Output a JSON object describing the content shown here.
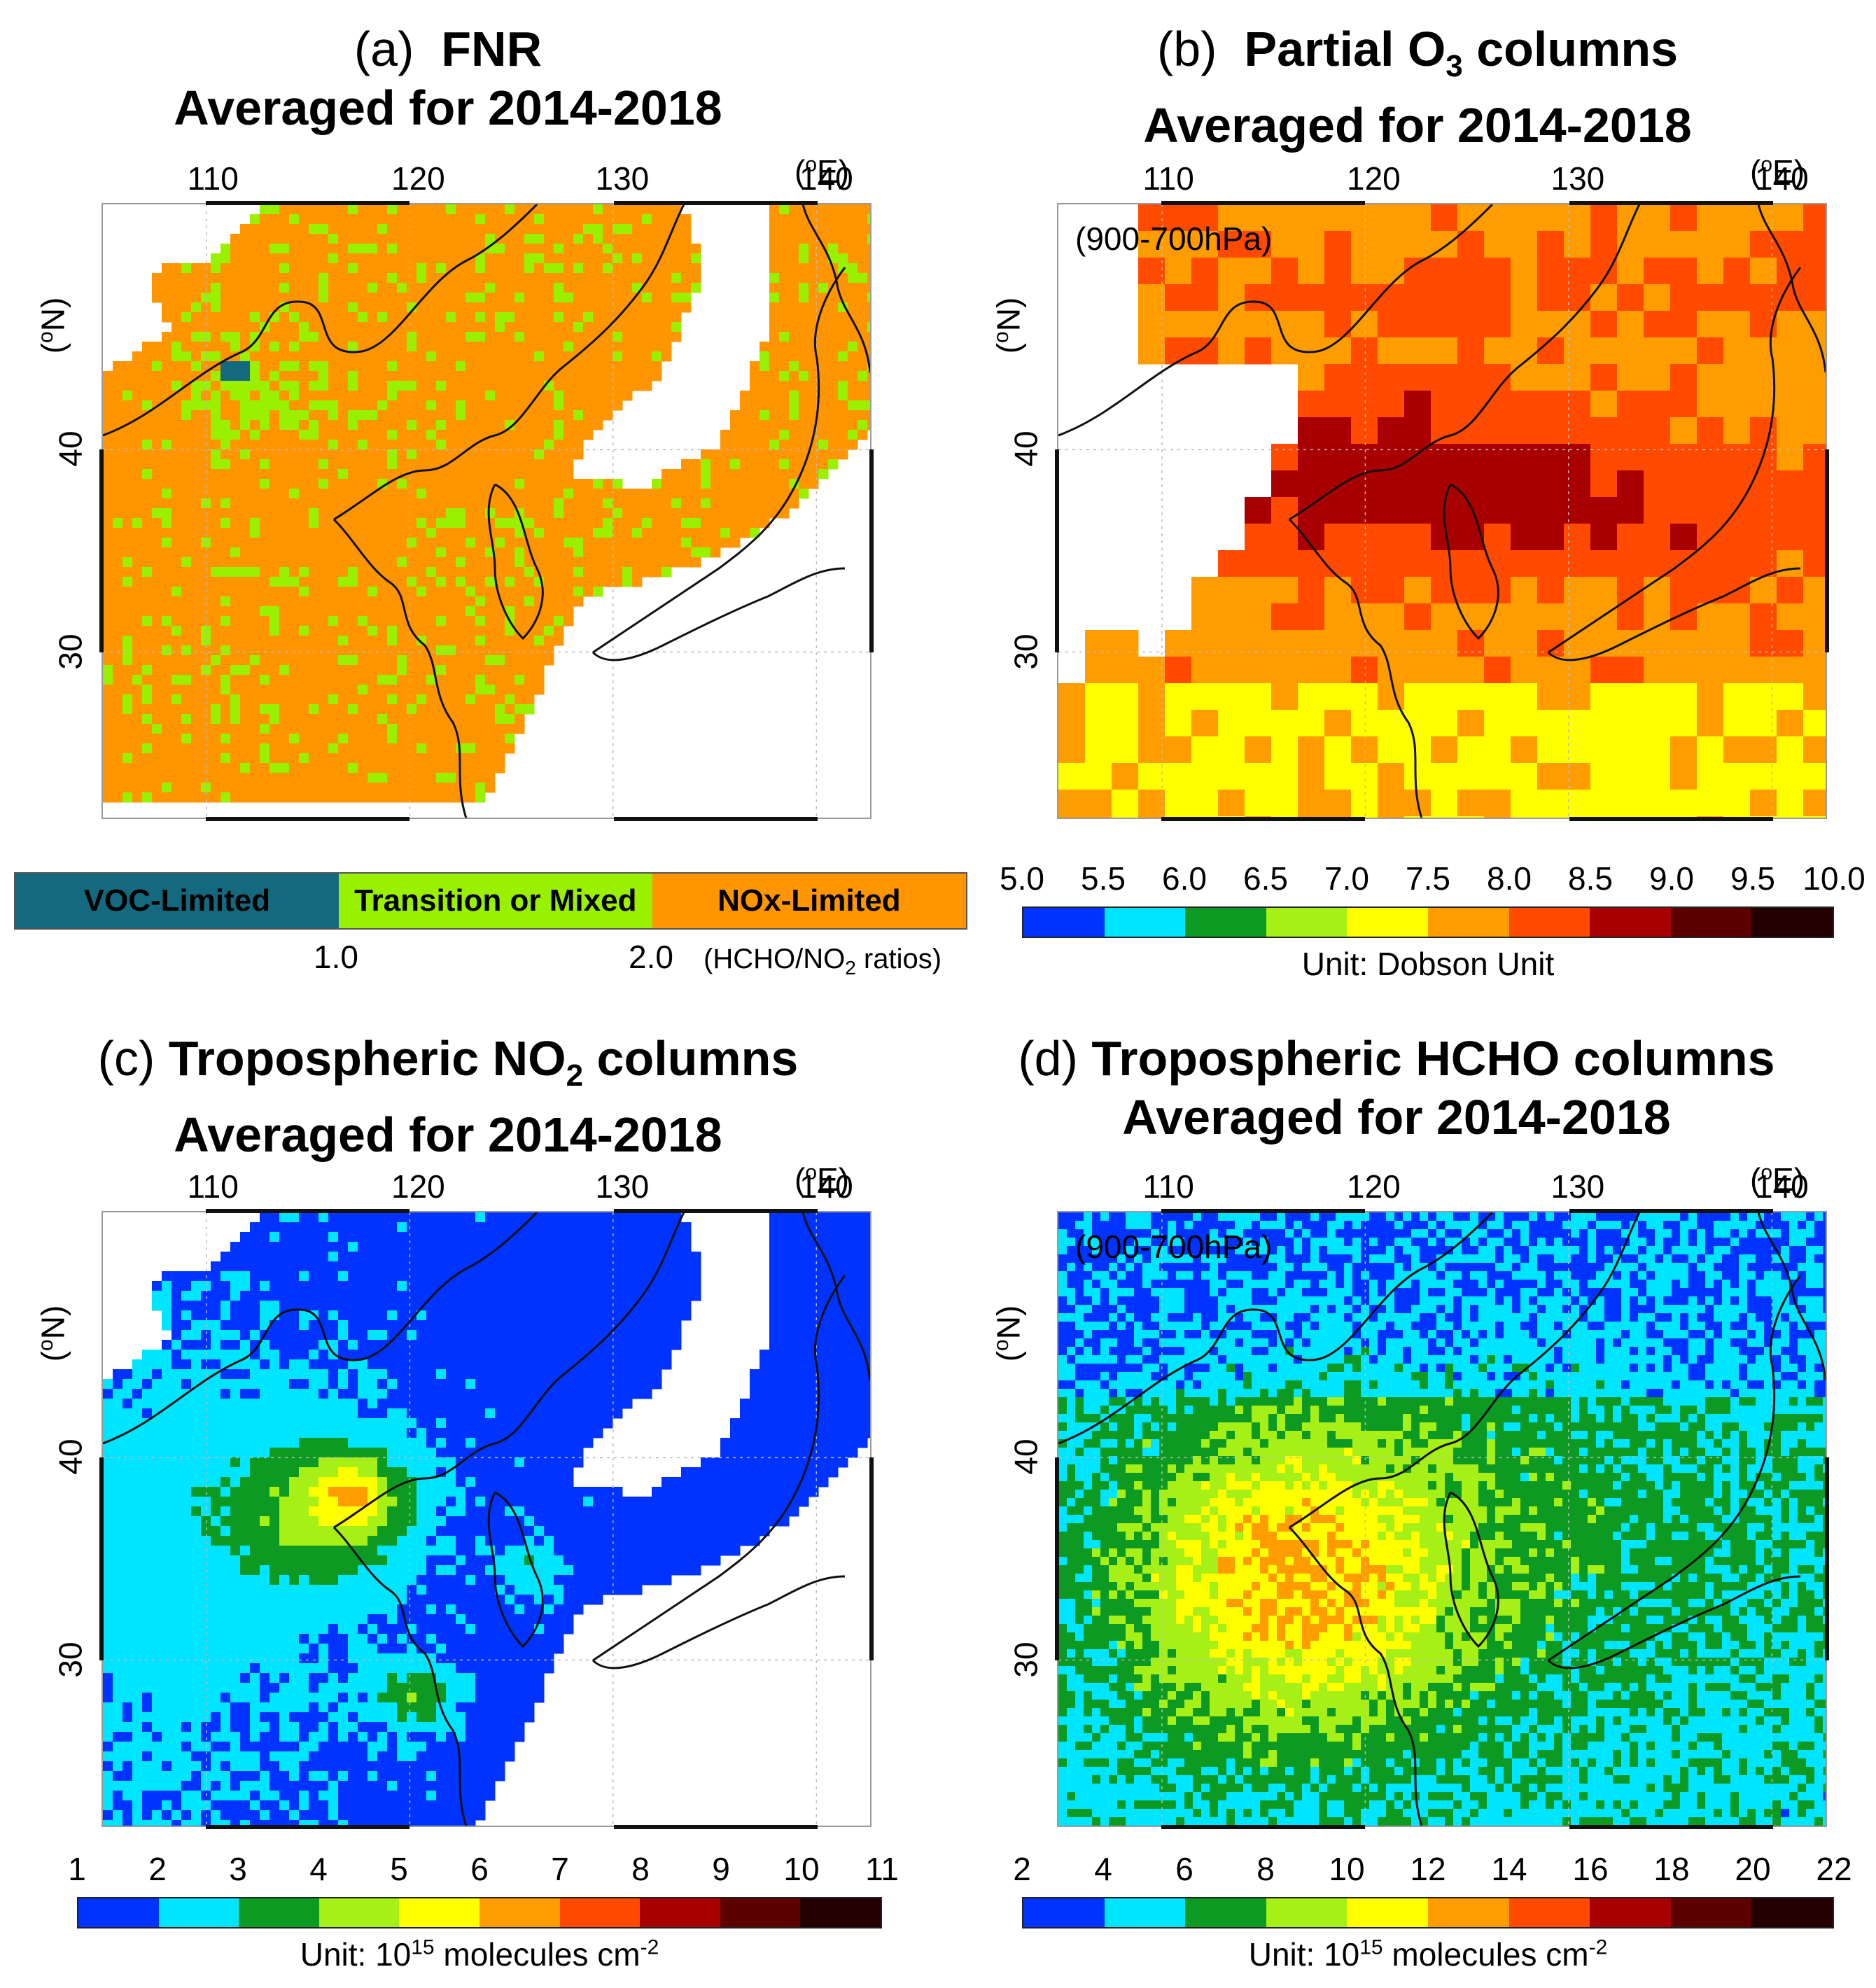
{
  "panels": [
    {
      "id": "a",
      "label": "(a)",
      "title_html": "FNR",
      "subtitle": "Averaged for 2014-2018",
      "pressure": "",
      "field": "fnr"
    },
    {
      "id": "b",
      "label": "(b)",
      "title_pre": "Partial O",
      "title_sub": "3",
      "title_post": " columns",
      "subtitle": "Averaged for 2014-2018",
      "pressure": "(900-700hPa)",
      "field": "o3"
    },
    {
      "id": "c",
      "label": "(c)",
      "title_pre": "Tropospheric NO",
      "title_sub": "2",
      "title_post": " columns",
      "subtitle": "Averaged for 2014-2018",
      "pressure": "",
      "field": "no2"
    },
    {
      "id": "d",
      "label": "(d)",
      "title_pre": "Tropospheric HCHO columns",
      "subtitle": "Averaged for 2014-2018",
      "pressure": "(900-700hPa)",
      "field": "hcho"
    }
  ],
  "axes": {
    "lon_ticks": [
      "110",
      "120",
      "130",
      "140"
    ],
    "lon_unit_pre": "(",
    "lon_unit_sup": "o",
    "lon_unit_post": "E)",
    "lat_ticks": [
      "40",
      "30"
    ],
    "lat_unit_pre": "(",
    "lat_unit_sup": "o",
    "lat_unit_post": "N)"
  },
  "fnr_legend": {
    "classes": [
      {
        "label": "VOC-Limited",
        "color": "#15697f"
      },
      {
        "label": "Transition or Mixed",
        "color": "#99f000"
      },
      {
        "label": "NOx-Limited",
        "color": "#ff9500"
      }
    ],
    "thresholds": [
      "1.0",
      "2.0"
    ],
    "note_pre": "(HCHO/NO",
    "note_sub": "2",
    "note_post": " ratios)"
  },
  "colorbars": {
    "colors": [
      "#0033ff",
      "#00e5ff",
      "#0d9a23",
      "#a6ef17",
      "#ffff00",
      "#ff9d00",
      "#ff4a00",
      "#a80000",
      "#5c0000",
      "#240000"
    ],
    "o3": {
      "ticks": [
        "5.0",
        "5.5",
        "6.0",
        "6.5",
        "7.0",
        "7.5",
        "8.0",
        "8.5",
        "9.0",
        "9.5",
        "10.0"
      ],
      "unit": "Unit: Dobson Unit"
    },
    "no2": {
      "ticks": [
        "1",
        "2",
        "3",
        "4",
        "5",
        "6",
        "7",
        "8",
        "9",
        "10",
        "11"
      ],
      "unit_pre": "Unit: 10",
      "unit_sup": "15",
      "unit_post": " molecules cm",
      "unit_sup2": "-2"
    },
    "hcho": {
      "ticks": [
        "2",
        "4",
        "6",
        "8",
        "10",
        "12",
        "14",
        "16",
        "18",
        "20",
        "22"
      ],
      "unit_pre": "Unit: 10",
      "unit_sup": "15",
      "unit_post": " molecules cm",
      "unit_sup2": "-2"
    }
  }
}
